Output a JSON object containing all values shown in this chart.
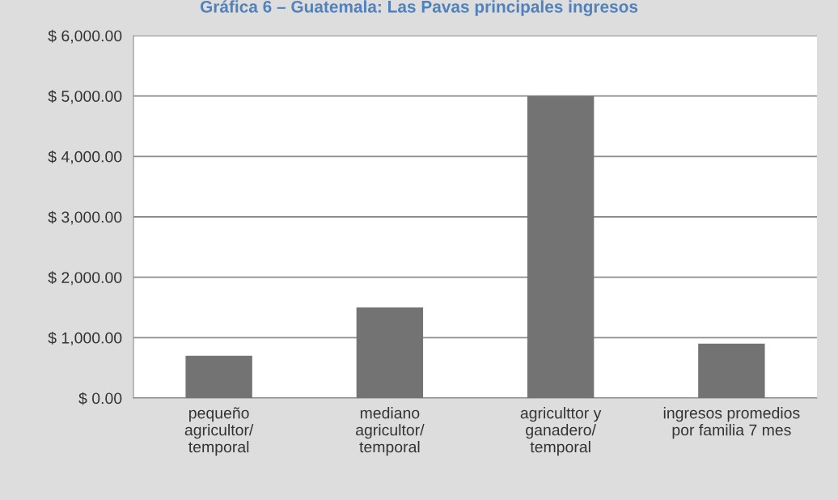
{
  "chart_data": {
    "type": "bar",
    "title": "Gráfica 6 – Guatemala: Las Pavas principales ingresos",
    "categories": [
      "pequeño\nagricultor/\ntemporal",
      "mediano\nagricultor/\ntemporal",
      "agriculttor y\nganadero/\ntemporal",
      "ingresos promedios\npor familia 7 mes"
    ],
    "values": [
      700,
      1500,
      5000,
      900
    ],
    "color": "#737373",
    "ylim": [
      0,
      6000
    ],
    "yticks": [
      {
        "value": 0,
        "label": "$ 0.00"
      },
      {
        "value": 1000,
        "label": "$ 1,000.00"
      },
      {
        "value": 2000,
        "label": "$ 2,000.00"
      },
      {
        "value": 3000,
        "label": "$ 3,000.00"
      },
      {
        "value": 4000,
        "label": "$ 4,000.00"
      },
      {
        "value": 5000,
        "label": "$ 5,000.00"
      },
      {
        "value": 6000,
        "label": "$ 6,000.00"
      }
    ],
    "grid": "y",
    "legend": false
  }
}
